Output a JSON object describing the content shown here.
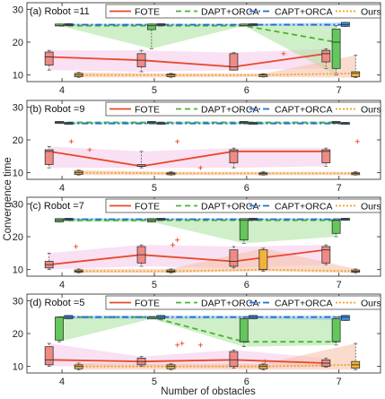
{
  "figure": {
    "xlabel": "Number of obstacles",
    "ylabel": "Convergence time"
  },
  "colors": {
    "fote": "#e8482a",
    "dapt": "#4bb32e",
    "capt": "#1f6fd6",
    "ours": "#f0a020",
    "fote_fill": "#f4c6e8",
    "dapt_fill": "#a7e29a",
    "capt_fill": "#9cc2ef",
    "ours_fill": "#f6c0a6",
    "fote_box": "#f08a84",
    "dapt_box": "#62c85a",
    "capt_box": "#3a8ee8",
    "ours_box": "#f3b33a"
  },
  "chart_data": [
    {
      "type": "box-line",
      "title": "(a) Robot =11",
      "ylabel": "Convergence time",
      "xlabel": "",
      "x": [
        4,
        5,
        6,
        7
      ],
      "xlim": [
        3.62,
        7.45
      ],
      "ylim": [
        8,
        32
      ],
      "yticks": [
        10,
        20,
        30
      ],
      "legend": "top-right",
      "series": [
        {
          "name": "FOTE",
          "key": "fote",
          "median": [
            15.5,
            14.5,
            12.5,
            16.5
          ],
          "boxes": [
            {
              "q1": 13,
              "q3": 17,
              "lo": 11.5,
              "hi": 17.5
            },
            {
              "q1": 12.5,
              "q3": 16.5,
              "lo": 11,
              "hi": 17.5
            },
            {
              "q1": 11.5,
              "q3": 16.5,
              "lo": 11.5,
              "hi": 16.8
            },
            {
              "q1": 14,
              "q3": 17.5,
              "lo": 12,
              "hi": 18
            }
          ],
          "outliers": [
            [
              6.4,
              16.5
            ]
          ]
        },
        {
          "name": "DAPT+ORCA",
          "key": "dapt",
          "median": [
            25,
            25,
            25,
            20
          ],
          "boxes": [
            {
              "q1": 25,
              "q3": 25.5,
              "lo": 25,
              "hi": 25.5
            },
            {
              "q1": 23.8,
              "q3": 25.5,
              "lo": 18,
              "hi": 25.5
            },
            {
              "q1": 25,
              "q3": 25.5,
              "lo": 25,
              "hi": 25.5
            },
            {
              "q1": 12,
              "q3": 24,
              "lo": 10,
              "hi": 25
            }
          ],
          "outliers": []
        },
        {
          "name": "CAPT+ORCA",
          "key": "capt",
          "median": [
            25.3,
            25.3,
            25.3,
            25.3
          ],
          "boxes": [
            {
              "q1": 25,
              "q3": 25.6,
              "lo": 25,
              "hi": 25.6
            },
            {
              "q1": 25,
              "q3": 25.6,
              "lo": 25,
              "hi": 25.6
            },
            {
              "q1": 25,
              "q3": 25.6,
              "lo": 25,
              "hi": 25.6
            },
            {
              "q1": 24.8,
              "q3": 26,
              "lo": 24.8,
              "hi": 26
            }
          ],
          "outliers": []
        },
        {
          "name": "Ours",
          "key": "ours",
          "median": [
            10,
            10,
            10,
            10.5
          ],
          "boxes": [
            {
              "q1": 9.5,
              "q3": 10.5,
              "lo": 9.3,
              "hi": 10.8
            },
            {
              "q1": 9.5,
              "q3": 10.3,
              "lo": 9.3,
              "hi": 10.5
            },
            {
              "q1": 9.5,
              "q3": 10.2,
              "lo": 9.4,
              "hi": 10.4
            },
            {
              "q1": 9.5,
              "q3": 11,
              "lo": 9.2,
              "hi": 16
            }
          ],
          "outliers": []
        }
      ]
    },
    {
      "type": "box-line",
      "title": "(b) Robot =9",
      "ylabel": "Convergence time",
      "xlabel": "",
      "x": [
        4,
        5,
        6,
        7
      ],
      "xlim": [
        3.62,
        7.45
      ],
      "ylim": [
        8,
        32
      ],
      "yticks": [
        10,
        20,
        30
      ],
      "legend": "top-right",
      "series": [
        {
          "name": "FOTE",
          "key": "fote",
          "median": [
            16.5,
            12,
            16.5,
            16.5
          ],
          "boxes": [
            {
              "q1": 12.5,
              "q3": 17,
              "lo": 11.5,
              "hi": 18
            },
            {
              "q1": 12,
              "q3": 12.5,
              "lo": 11.5,
              "hi": 16.5
            },
            {
              "q1": 13,
              "q3": 17,
              "lo": 11.5,
              "hi": 17.5
            },
            {
              "q1": 13,
              "q3": 17,
              "lo": 12,
              "hi": 17.5
            }
          ],
          "outliers": [
            [
              4.1,
              19.5
            ],
            [
              4.3,
              17
            ],
            [
              5.25,
              19.5
            ],
            [
              5.5,
              11.5
            ],
            [
              7.2,
              19.5
            ]
          ]
        },
        {
          "name": "DAPT+ORCA",
          "key": "dapt",
          "median": [
            25.3,
            25.3,
            25.3,
            25.3
          ],
          "boxes": [
            {
              "q1": 25,
              "q3": 25.6,
              "lo": 25,
              "hi": 25.6
            },
            {
              "q1": 25,
              "q3": 25.6,
              "lo": 25,
              "hi": 25.6
            },
            {
              "q1": 25,
              "q3": 25.6,
              "lo": 25,
              "hi": 25.6
            },
            {
              "q1": 25,
              "q3": 25.6,
              "lo": 25,
              "hi": 25.6
            }
          ],
          "outliers": []
        },
        {
          "name": "CAPT+ORCA",
          "key": "capt",
          "median": [
            25,
            25,
            25,
            25
          ],
          "boxes": [
            {
              "q1": 24.8,
              "q3": 25.3,
              "lo": 24.8,
              "hi": 25.3
            },
            {
              "q1": 24.8,
              "q3": 25.3,
              "lo": 24.8,
              "hi": 25.3
            },
            {
              "q1": 24.8,
              "q3": 25.3,
              "lo": 24.8,
              "hi": 25.3
            },
            {
              "q1": 24.8,
              "q3": 25.3,
              "lo": 24.8,
              "hi": 25.3
            }
          ],
          "outliers": []
        },
        {
          "name": "Ours",
          "key": "ours",
          "median": [
            10,
            9.8,
            9.8,
            9.8
          ],
          "boxes": [
            {
              "q1": 9.5,
              "q3": 10.5,
              "lo": 9.3,
              "hi": 10.8
            },
            {
              "q1": 9.4,
              "q3": 10,
              "lo": 9.3,
              "hi": 10.3
            },
            {
              "q1": 9.4,
              "q3": 10,
              "lo": 9.3,
              "hi": 10.3
            },
            {
              "q1": 9.4,
              "q3": 10,
              "lo": 9.3,
              "hi": 10.3
            }
          ],
          "outliers": []
        }
      ]
    },
    {
      "type": "box-line",
      "title": "(c) Robot =7",
      "ylabel": "Convergence time",
      "xlabel": "",
      "x": [
        4,
        5,
        6,
        7
      ],
      "xlim": [
        3.62,
        7.45
      ],
      "ylim": [
        8,
        32
      ],
      "yticks": [
        10,
        20,
        30
      ],
      "legend": "top-right",
      "series": [
        {
          "name": "FOTE",
          "key": "fote",
          "median": [
            11.5,
            14.5,
            12.5,
            16
          ],
          "boxes": [
            {
              "q1": 10.5,
              "q3": 12.5,
              "lo": 10,
              "hi": 15
            },
            {
              "q1": 12,
              "q3": 17,
              "lo": 11,
              "hi": 17.5
            },
            {
              "q1": 11,
              "q3": 16,
              "lo": 10.5,
              "hi": 17
            },
            {
              "q1": 12,
              "q3": 17,
              "lo": 11.5,
              "hi": 17.5
            }
          ],
          "outliers": [
            [
              4.15,
              17
            ],
            [
              5.2,
              17.5
            ],
            [
              5.25,
              19
            ]
          ]
        },
        {
          "name": "DAPT+ORCA",
          "key": "dapt",
          "median": [
            25,
            25,
            25,
            25
          ],
          "boxes": [
            {
              "q1": 24.5,
              "q3": 25.5,
              "lo": 24.5,
              "hi": 25.5
            },
            {
              "q1": 24.5,
              "q3": 25.5,
              "lo": 24.5,
              "hi": 25.5
            },
            {
              "q1": 19,
              "q3": 25.5,
              "lo": 18,
              "hi": 25.5
            },
            {
              "q1": 21,
              "q3": 25,
              "lo": 20,
              "hi": 25.5
            }
          ],
          "outliers": []
        },
        {
          "name": "CAPT+ORCA",
          "key": "capt",
          "median": [
            25.3,
            25.3,
            25.3,
            25.3
          ],
          "boxes": [
            {
              "q1": 25,
              "q3": 25.6,
              "lo": 25,
              "hi": 25.6
            },
            {
              "q1": 25,
              "q3": 25.6,
              "lo": 25,
              "hi": 25.6
            },
            {
              "q1": 25,
              "q3": 25.6,
              "lo": 25,
              "hi": 25.6
            },
            {
              "q1": 25,
              "q3": 25.6,
              "lo": 25,
              "hi": 25.6
            }
          ],
          "outliers": []
        },
        {
          "name": "Ours",
          "key": "ours",
          "median": [
            9.5,
            9.5,
            10,
            9.5
          ],
          "boxes": [
            {
              "q1": 9.2,
              "q3": 9.9,
              "lo": 9,
              "hi": 10.2
            },
            {
              "q1": 9.2,
              "q3": 9.9,
              "lo": 9,
              "hi": 10.2
            },
            {
              "q1": 10,
              "q3": 16,
              "lo": 9.5,
              "hi": 16.5
            },
            {
              "q1": 9.2,
              "q3": 9.9,
              "lo": 9,
              "hi": 10.2
            }
          ],
          "outliers": []
        }
      ]
    },
    {
      "type": "box-line",
      "title": "(d) Robot =5",
      "ylabel": "Convergence time",
      "xlabel": "Number of obstacles",
      "x": [
        4,
        5,
        6,
        7
      ],
      "xlim": [
        3.62,
        7.45
      ],
      "ylim": [
        8,
        32
      ],
      "yticks": [
        10,
        20,
        30
      ],
      "legend": "top-right",
      "series": [
        {
          "name": "FOTE",
          "key": "fote",
          "median": [
            12,
            11.5,
            12,
            11
          ],
          "boxes": [
            {
              "q1": 10.5,
              "q3": 16,
              "lo": 10,
              "hi": 17
            },
            {
              "q1": 10.5,
              "q3": 12.5,
              "lo": 10,
              "hi": 13
            },
            {
              "q1": 10,
              "q3": 14.5,
              "lo": 9.5,
              "hi": 15
            },
            {
              "q1": 10,
              "q3": 12,
              "lo": 9.8,
              "hi": 12.5
            }
          ],
          "outliers": [
            [
              5.25,
              16.5
            ],
            [
              5.3,
              17
            ],
            [
              5.5,
              16.5
            ],
            [
              6.2,
              11.5
            ]
          ]
        },
        {
          "name": "DAPT+ORCA",
          "key": "dapt",
          "median": [
            25,
            25,
            17.5,
            17.5
          ],
          "boxes": [
            {
              "q1": 18,
              "q3": 25,
              "lo": 17.5,
              "hi": 25
            },
            {
              "q1": 24.5,
              "q3": 25,
              "lo": 24.5,
              "hi": 25
            },
            {
              "q1": 17.5,
              "q3": 24.5,
              "lo": 16,
              "hi": 25
            },
            {
              "q1": 17.5,
              "q3": 24.5,
              "lo": 16.5,
              "hi": 25
            }
          ],
          "outliers": []
        },
        {
          "name": "CAPT+ORCA",
          "key": "capt",
          "median": [
            25,
            25,
            25,
            25
          ],
          "boxes": [
            {
              "q1": 24.5,
              "q3": 25.5,
              "lo": 24.5,
              "hi": 25.5
            },
            {
              "q1": 24.5,
              "q3": 25.5,
              "lo": 24.5,
              "hi": 25.5
            },
            {
              "q1": 24.5,
              "q3": 25.5,
              "lo": 24.5,
              "hi": 25.5
            },
            {
              "q1": 24,
              "q3": 25.5,
              "lo": 24,
              "hi": 25.5
            }
          ],
          "outliers": []
        },
        {
          "name": "Ours",
          "key": "ours",
          "median": [
            10,
            10,
            10,
            10.5
          ],
          "boxes": [
            {
              "q1": 9.3,
              "q3": 10.5,
              "lo": 9,
              "hi": 11
            },
            {
              "q1": 9.3,
              "q3": 10.5,
              "lo": 9,
              "hi": 10.8
            },
            {
              "q1": 9.3,
              "q3": 10.5,
              "lo": 9,
              "hi": 10.8
            },
            {
              "q1": 9.5,
              "q3": 11.5,
              "lo": 9,
              "hi": 17
            }
          ],
          "outliers": []
        }
      ]
    }
  ]
}
